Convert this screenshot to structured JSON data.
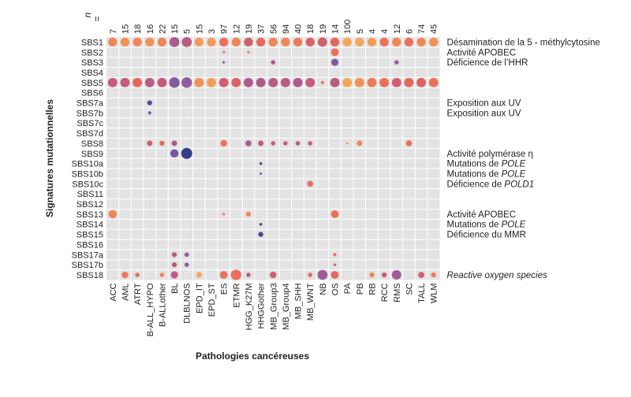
{
  "chart_data": {
    "type": "bubble-heatmap",
    "n_prefix": "n",
    "n_eq": "=",
    "xlabel": "Pathologies cancéreuses",
    "ylabel": "Signatures mutationnelles",
    "categories": [
      "ACC",
      "AML",
      "ATRT",
      "B-ALL_HYPO",
      "B-ALLother",
      "BL",
      "DLBLNOS",
      "EPD_IT",
      "EPD_ST",
      "ES",
      "ETMR",
      "HGG_K27M",
      "HHGGother",
      "MB_Group3",
      "MB_Group4",
      "MB_SHH",
      "MB_WNT",
      "NB",
      "OS",
      "PA",
      "PB",
      "RB",
      "RCC",
      "RMS",
      "SC",
      "TALL",
      "WLM"
    ],
    "n": [
      "7",
      "15",
      "18",
      "16",
      "22",
      "15",
      "5",
      "15",
      "3",
      "97",
      "12",
      "19",
      "37",
      "56",
      "94",
      "40",
      "18",
      "19",
      "14",
      "100",
      "5",
      "4",
      "4",
      "12",
      "6",
      "74",
      "45"
    ],
    "signatures": [
      "SBS1",
      "SBS2",
      "SBS3",
      "SBS4",
      "SBS5",
      "SBS6",
      "SBS7a",
      "SBS7b",
      "SBS7c",
      "SBS7d",
      "SBS8",
      "SBS9",
      "SBS10a",
      "SBS10b",
      "SBS10c",
      "SBS11",
      "SBS12",
      "SBS13",
      "SBS14",
      "SBS15",
      "SBS16",
      "SBS17a",
      "SBS17b",
      "SBS18"
    ],
    "annotations": [
      {
        "row": "SBS1",
        "segments": [
          {
            "text": "Désamination de la 5 - méthylcytosine",
            "style": "normal"
          }
        ]
      },
      {
        "row": "SBS2",
        "segments": [
          {
            "text": "Activité APOBEC",
            "style": "normal"
          }
        ]
      },
      {
        "row": "SBS3",
        "segments": [
          {
            "text": "Déficience de l’HHR",
            "style": "normal"
          }
        ]
      },
      {
        "row": "SBS7a",
        "segments": [
          {
            "text": "Exposition aux UV",
            "style": "normal"
          }
        ]
      },
      {
        "row": "SBS7b",
        "segments": [
          {
            "text": "Exposition aux UV",
            "style": "normal"
          }
        ]
      },
      {
        "row": "SBS9",
        "segments": [
          {
            "text": "Activité polymérase η",
            "style": "normal"
          }
        ]
      },
      {
        "row": "SBS10a",
        "segments": [
          {
            "text": "Mutations de ",
            "style": "normal"
          },
          {
            "text": "POLE",
            "style": "italic"
          }
        ]
      },
      {
        "row": "SBS10b",
        "segments": [
          {
            "text": "Mutations de ",
            "style": "normal"
          },
          {
            "text": "POLE",
            "style": "italic"
          }
        ]
      },
      {
        "row": "SBS10c",
        "segments": [
          {
            "text": "Déficience de ",
            "style": "normal"
          },
          {
            "text": "POLD1",
            "style": "italic"
          }
        ]
      },
      {
        "row": "SBS13",
        "segments": [
          {
            "text": "Activité APOBEC",
            "style": "normal"
          }
        ]
      },
      {
        "row": "SBS14",
        "segments": [
          {
            "text": "Mutations de ",
            "style": "normal"
          },
          {
            "text": "POLE",
            "style": "italic"
          }
        ]
      },
      {
        "row": "SBS15",
        "segments": [
          {
            "text": "Déficience du MMR",
            "style": "normal"
          }
        ]
      },
      {
        "row": "SBS18",
        "segments": [
          {
            "text": "Reactive oxygen species",
            "style": "italic"
          }
        ]
      }
    ],
    "colors": {
      "cell_background": "#e3e3e3",
      "grid_line": "#ffffff",
      "scale": [
        "#f4b25a",
        "#f28e58",
        "#e8685a",
        "#c75b7a",
        "#9b5b99",
        "#6a57a6",
        "#333f8a"
      ]
    },
    "points": [
      {
        "row": "SBS1",
        "col": "ACC",
        "size": 0.8,
        "color": 0.2
      },
      {
        "row": "SBS1",
        "col": "AML",
        "size": 0.8,
        "color": 0.15
      },
      {
        "row": "SBS1",
        "col": "ATRT",
        "size": 0.8,
        "color": 0.2
      },
      {
        "row": "SBS1",
        "col": "B-ALL_HYPO",
        "size": 0.8,
        "color": 0.15
      },
      {
        "row": "SBS1",
        "col": "B-ALLother",
        "size": 0.8,
        "color": 0.2
      },
      {
        "row": "SBS1",
        "col": "BL",
        "size": 0.9,
        "color": 0.6
      },
      {
        "row": "SBS1",
        "col": "DLBLNOS",
        "size": 0.9,
        "color": 0.55
      },
      {
        "row": "SBS1",
        "col": "EPD_IT",
        "size": 0.8,
        "color": 0.1
      },
      {
        "row": "SBS1",
        "col": "EPD_ST",
        "size": 0.8,
        "color": 0.1
      },
      {
        "row": "SBS1",
        "col": "ES",
        "size": 0.8,
        "color": 0.3
      },
      {
        "row": "SBS1",
        "col": "ETMR",
        "size": 0.8,
        "color": 0.2
      },
      {
        "row": "SBS1",
        "col": "HGG_K27M",
        "size": 0.8,
        "color": 0.45
      },
      {
        "row": "SBS1",
        "col": "HHGGother",
        "size": 0.8,
        "color": 0.35
      },
      {
        "row": "SBS1",
        "col": "MB_Group3",
        "size": 0.8,
        "color": 0.2
      },
      {
        "row": "SBS1",
        "col": "MB_Group4",
        "size": 0.8,
        "color": 0.2
      },
      {
        "row": "SBS1",
        "col": "MB_SHH",
        "size": 0.8,
        "color": 0.25
      },
      {
        "row": "SBS1",
        "col": "MB_WNT",
        "size": 0.8,
        "color": 0.4
      },
      {
        "row": "SBS1",
        "col": "NB",
        "size": 0.85,
        "color": 0.45
      },
      {
        "row": "SBS1",
        "col": "OS",
        "size": 0.8,
        "color": 0.35
      },
      {
        "row": "SBS1",
        "col": "PA",
        "size": 0.8,
        "color": 0.05
      },
      {
        "row": "SBS1",
        "col": "PB",
        "size": 0.8,
        "color": 0.05
      },
      {
        "row": "SBS1",
        "col": "RB",
        "size": 0.8,
        "color": 0.1
      },
      {
        "row": "SBS1",
        "col": "RCC",
        "size": 0.8,
        "color": 0.3
      },
      {
        "row": "SBS1",
        "col": "RMS",
        "size": 0.8,
        "color": 0.2
      },
      {
        "row": "SBS1",
        "col": "SC",
        "size": 0.8,
        "color": 0.3
      },
      {
        "row": "SBS1",
        "col": "TALL",
        "size": 0.8,
        "color": 0.2
      },
      {
        "row": "SBS1",
        "col": "WLM",
        "size": 0.8,
        "color": 0.15
      },
      {
        "row": "SBS2",
        "col": "ES",
        "size": 0.25,
        "color": 0.2
      },
      {
        "row": "SBS2",
        "col": "HGG_K27M",
        "size": 0.25,
        "color": 0.2
      },
      {
        "row": "SBS2",
        "col": "OS",
        "size": 0.7,
        "color": 0.3
      },
      {
        "row": "SBS3",
        "col": "ES",
        "size": 0.22,
        "color": 0.75
      },
      {
        "row": "SBS3",
        "col": "MB_Group3",
        "size": 0.4,
        "color": 0.6
      },
      {
        "row": "SBS3",
        "col": "OS",
        "size": 0.65,
        "color": 0.75
      },
      {
        "row": "SBS3",
        "col": "RMS",
        "size": 0.4,
        "color": 0.65
      },
      {
        "row": "SBS5",
        "col": "ACC",
        "size": 0.85,
        "color": 0.5
      },
      {
        "row": "SBS5",
        "col": "AML",
        "size": 0.85,
        "color": 0.5
      },
      {
        "row": "SBS5",
        "col": "ATRT",
        "size": 0.85,
        "color": 0.35
      },
      {
        "row": "SBS5",
        "col": "B-ALL_HYPO",
        "size": 0.85,
        "color": 0.55
      },
      {
        "row": "SBS5",
        "col": "B-ALLother",
        "size": 0.85,
        "color": 0.5
      },
      {
        "row": "SBS5",
        "col": "BL",
        "size": 0.95,
        "color": 0.75
      },
      {
        "row": "SBS5",
        "col": "DLBLNOS",
        "size": 0.95,
        "color": 0.7
      },
      {
        "row": "SBS5",
        "col": "EPD_IT",
        "size": 0.85,
        "color": 0.15
      },
      {
        "row": "SBS5",
        "col": "EPD_ST",
        "size": 0.85,
        "color": 0.1
      },
      {
        "row": "SBS5",
        "col": "ES",
        "size": 0.85,
        "color": 0.45
      },
      {
        "row": "SBS5",
        "col": "ETMR",
        "size": 0.85,
        "color": 0.4
      },
      {
        "row": "SBS5",
        "col": "HGG_K27M",
        "size": 0.85,
        "color": 0.6
      },
      {
        "row": "SBS5",
        "col": "HHGGother",
        "size": 0.85,
        "color": 0.6
      },
      {
        "row": "SBS5",
        "col": "MB_Group3",
        "size": 0.85,
        "color": 0.55
      },
      {
        "row": "SBS5",
        "col": "MB_Group4",
        "size": 0.85,
        "color": 0.55
      },
      {
        "row": "SBS5",
        "col": "MB_SHH",
        "size": 0.85,
        "color": 0.6
      },
      {
        "row": "SBS5",
        "col": "MB_WNT",
        "size": 0.85,
        "color": 0.5
      },
      {
        "row": "SBS5",
        "col": "NB",
        "size": 0.3,
        "color": 0.3
      },
      {
        "row": "SBS5",
        "col": "OS",
        "size": 0.85,
        "color": 0.55
      },
      {
        "row": "SBS5",
        "col": "PA",
        "size": 0.85,
        "color": 0.05
      },
      {
        "row": "SBS5",
        "col": "PB",
        "size": 0.85,
        "color": 0.15
      },
      {
        "row": "SBS5",
        "col": "RB",
        "size": 0.85,
        "color": 0.25
      },
      {
        "row": "SBS5",
        "col": "RCC",
        "size": 0.85,
        "color": 0.3
      },
      {
        "row": "SBS5",
        "col": "RMS",
        "size": 0.85,
        "color": 0.45
      },
      {
        "row": "SBS5",
        "col": "SC",
        "size": 0.85,
        "color": 0.35
      },
      {
        "row": "SBS5",
        "col": "TALL",
        "size": 0.85,
        "color": 0.4
      },
      {
        "row": "SBS5",
        "col": "WLM",
        "size": 0.85,
        "color": 0.3
      },
      {
        "row": "SBS7a",
        "col": "B-ALL_HYPO",
        "size": 0.45,
        "color": 0.9
      },
      {
        "row": "SBS7b",
        "col": "B-ALL_HYPO",
        "size": 0.3,
        "color": 0.75
      },
      {
        "row": "SBS8",
        "col": "B-ALL_HYPO",
        "size": 0.5,
        "color": 0.45
      },
      {
        "row": "SBS8",
        "col": "B-ALLother",
        "size": 0.45,
        "color": 0.35
      },
      {
        "row": "SBS8",
        "col": "BL",
        "size": 0.5,
        "color": 0.6
      },
      {
        "row": "SBS8",
        "col": "ES",
        "size": 0.6,
        "color": 0.3
      },
      {
        "row": "SBS8",
        "col": "HGG_K27M",
        "size": 0.55,
        "color": 0.6
      },
      {
        "row": "SBS8",
        "col": "HHGGother",
        "size": 0.5,
        "color": 0.55
      },
      {
        "row": "SBS8",
        "col": "MB_Group3",
        "size": 0.4,
        "color": 0.5
      },
      {
        "row": "SBS8",
        "col": "MB_Group4",
        "size": 0.4,
        "color": 0.45
      },
      {
        "row": "SBS8",
        "col": "MB_SHH",
        "size": 0.4,
        "color": 0.55
      },
      {
        "row": "SBS8",
        "col": "MB_WNT",
        "size": 0.4,
        "color": 0.45
      },
      {
        "row": "SBS8",
        "col": "PA",
        "size": 0.22,
        "color": 0.1
      },
      {
        "row": "SBS8",
        "col": "PB",
        "size": 0.5,
        "color": 0.2
      },
      {
        "row": "SBS8",
        "col": "SC",
        "size": 0.55,
        "color": 0.3
      },
      {
        "row": "SBS9",
        "col": "BL",
        "size": 0.75,
        "color": 0.8
      },
      {
        "row": "SBS9",
        "col": "DLBLNOS",
        "size": 1.0,
        "color": 1.0
      },
      {
        "row": "SBS10a",
        "col": "HHGGother",
        "size": 0.25,
        "color": 0.9
      },
      {
        "row": "SBS10b",
        "col": "HHGGother",
        "size": 0.2,
        "color": 0.9
      },
      {
        "row": "SBS10c",
        "col": "MB_WNT",
        "size": 0.55,
        "color": 0.3
      },
      {
        "row": "SBS13",
        "col": "ACC",
        "size": 0.75,
        "color": 0.2
      },
      {
        "row": "SBS13",
        "col": "ES",
        "size": 0.25,
        "color": 0.2
      },
      {
        "row": "SBS13",
        "col": "HGG_K27M",
        "size": 0.45,
        "color": 0.2
      },
      {
        "row": "SBS13",
        "col": "OS",
        "size": 0.7,
        "color": 0.3
      },
      {
        "row": "SBS14",
        "col": "HHGGother",
        "size": 0.25,
        "color": 0.95
      },
      {
        "row": "SBS15",
        "col": "HHGGother",
        "size": 0.45,
        "color": 0.95
      },
      {
        "row": "SBS17a",
        "col": "BL",
        "size": 0.45,
        "color": 0.55
      },
      {
        "row": "SBS17a",
        "col": "DLBLNOS",
        "size": 0.4,
        "color": 0.7
      },
      {
        "row": "SBS17a",
        "col": "OS",
        "size": 0.3,
        "color": 0.3
      },
      {
        "row": "SBS17b",
        "col": "BL",
        "size": 0.45,
        "color": 0.55
      },
      {
        "row": "SBS17b",
        "col": "DLBLNOS",
        "size": 0.4,
        "color": 0.7
      },
      {
        "row": "SBS17b",
        "col": "OS",
        "size": 0.25,
        "color": 0.4
      },
      {
        "row": "SBS18",
        "col": "AML",
        "size": 0.6,
        "color": 0.25
      },
      {
        "row": "SBS18",
        "col": "ATRT",
        "size": 0.4,
        "color": 0.3
      },
      {
        "row": "SBS18",
        "col": "B-ALLother",
        "size": 0.4,
        "color": 0.2
      },
      {
        "row": "SBS18",
        "col": "BL",
        "size": 0.65,
        "color": 0.55
      },
      {
        "row": "SBS18",
        "col": "EPD_IT",
        "size": 0.5,
        "color": 0.05
      },
      {
        "row": "SBS18",
        "col": "ES",
        "size": 0.7,
        "color": 0.3
      },
      {
        "row": "SBS18",
        "col": "ETMR",
        "size": 0.95,
        "color": 0.3
      },
      {
        "row": "SBS18",
        "col": "HGG_K27M",
        "size": 0.4,
        "color": 0.55
      },
      {
        "row": "SBS18",
        "col": "MB_Group3",
        "size": 0.6,
        "color": 0.45
      },
      {
        "row": "SBS18",
        "col": "MB_WNT",
        "size": 0.4,
        "color": 0.35
      },
      {
        "row": "SBS18",
        "col": "NB",
        "size": 0.9,
        "color": 0.65
      },
      {
        "row": "SBS18",
        "col": "OS",
        "size": 0.7,
        "color": 0.35
      },
      {
        "row": "SBS18",
        "col": "RB",
        "size": 0.45,
        "color": 0.2
      },
      {
        "row": "SBS18",
        "col": "RCC",
        "size": 0.45,
        "color": 0.5
      },
      {
        "row": "SBS18",
        "col": "RMS",
        "size": 0.85,
        "color": 0.65
      },
      {
        "row": "SBS18",
        "col": "TALL",
        "size": 0.55,
        "color": 0.45
      },
      {
        "row": "SBS18",
        "col": "WLM",
        "size": 0.45,
        "color": 0.25
      }
    ]
  }
}
